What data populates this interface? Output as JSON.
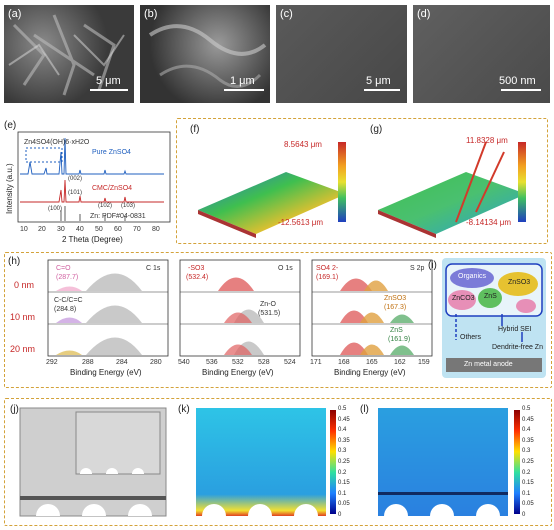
{
  "sem": {
    "a": {
      "label": "(a)",
      "scale": "5 μm"
    },
    "b": {
      "label": "(b)",
      "scale": "1 μm"
    },
    "c": {
      "label": "(c)",
      "scale": "5 μm"
    },
    "d": {
      "label": "(d)",
      "scale": "500 nm"
    }
  },
  "xrd": {
    "label": "(e)",
    "annotation": "Zn4SO4(OH)6·xH2O",
    "ylabel": "Intensity (a.u.)",
    "xlabel": "2 Theta (Degree)",
    "ticks": [
      "10",
      "20",
      "30",
      "40",
      "50",
      "60",
      "70",
      "80"
    ],
    "legend_pure": "Pure ZnSO4",
    "legend_cmc": "CMC/ZnSO4",
    "ref": "Zn: PDF#04-0831",
    "peaks": [
      "(002)",
      "(101)",
      "(100)",
      "(102)",
      "(103)"
    ]
  },
  "afm": {
    "f": {
      "label": "(f)",
      "max": "8.5643 μm",
      "min": "-12.5613 μm"
    },
    "g": {
      "label": "(g)",
      "max": "11.8328 μm",
      "min": "-8.14134 μm"
    }
  },
  "xps": {
    "label": "(h)",
    "depths": [
      "0 nm",
      "10 nm",
      "20 nm"
    ],
    "c1s": {
      "title": "C 1s",
      "peak1": "C=O",
      "peak1b": "(287.7)",
      "peak2": "C-C/C=C",
      "peak2b": "(284.8)",
      "ticks": [
        "292",
        "288",
        "284",
        "280"
      ],
      "xlabel": "Binding Energy (eV)"
    },
    "o1s": {
      "title": "O 1s",
      "peak1": "-SO3",
      "peak1b": "(532.4)",
      "peak2": "Zn-O",
      "peak2b": "(531.5)",
      "ticks": [
        "540",
        "536",
        "532",
        "528",
        "524"
      ],
      "xlabel": "Binding Energy (eV)"
    },
    "s2p": {
      "title": "S 2p",
      "peak1": "SO4 2-",
      "peak1b": "(169.1)",
      "peak2": "ZnSO3",
      "peak2b": "(167.3)",
      "peak3": "ZnS",
      "peak3b": "(161.9)",
      "ticks": [
        "171",
        "168",
        "165",
        "162",
        "159"
      ],
      "xlabel": "Binding Energy (eV)"
    }
  },
  "schematic": {
    "label": "(i)",
    "organics": "Organics",
    "znso3": "ZnSO3",
    "znco3": "ZnCO3",
    "zns": "ZnS",
    "others": "Others",
    "sei": "Hybrid SEI",
    "dendrite": "Dendrite-free Zn",
    "anode": "Zn metal anode"
  },
  "sim": {
    "j": {
      "label": "(j)"
    },
    "k": {
      "label": "(k)",
      "scale": [
        "0.5",
        "0.45",
        "0.4",
        "0.35",
        "0.3",
        "0.25",
        "0.2",
        "0.15",
        "0.1",
        "0.05",
        "0"
      ]
    },
    "l": {
      "label": "(l)",
      "scale": [
        "0.5",
        "0.45",
        "0.4",
        "0.35",
        "0.3",
        "0.25",
        "0.2",
        "0.15",
        "0.1",
        "0.05",
        "0"
      ]
    }
  },
  "colors": {
    "gold": "#d3a23a",
    "blue": "#1f5fbf",
    "red": "#c62828"
  }
}
